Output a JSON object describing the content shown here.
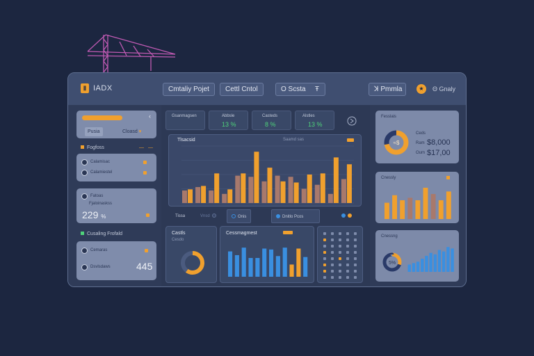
{
  "colors": {
    "accent": "#f0a02e",
    "blue": "#3a8fe0",
    "brown": "#a8796c",
    "green": "#4fd27a",
    "bg": "#1c2640",
    "magenta": "#c05ab3"
  },
  "header": {
    "logo_icon": "logo-icon",
    "logo_text": "IADX",
    "buttons": [
      {
        "label": "Cmtaliy Pojet"
      },
      {
        "label": "Cettl Cntol"
      },
      {
        "icon": "search-icon",
        "label": "O Scsta",
        "caret": "Ŧ"
      },
      {
        "icon": "building-icon",
        "label": "ꓘ Pmmla"
      }
    ],
    "help_icon": "info-icon",
    "help_label": "Θ Gnaly"
  },
  "sidebar": {
    "filter_button": "Pusia",
    "filter_dropdown": "Cloasd",
    "section1": {
      "label": "Fogfoss",
      "dots": "— —"
    },
    "section1_rows": [
      {
        "label": "Calamisac"
      },
      {
        "label": "Calamiestel"
      }
    ],
    "section2_rows": [
      {
        "label": "Fatoas"
      },
      {
        "label": "Fjaloinaskss"
      }
    ],
    "section2_value": "229",
    "section2_unit": "%",
    "section3": {
      "label": "Cusaling Frofald"
    },
    "section3_rows": [
      {
        "label": "Cemaras"
      },
      {
        "label": "Dsvlsdaws"
      }
    ],
    "section3_value": "445"
  },
  "kpis": [
    {
      "label": "Gsanmagsen",
      "value": ""
    },
    {
      "label": "Abbsle",
      "value": "13 %"
    },
    {
      "label": "Casteds",
      "value": "8 %"
    },
    {
      "label": "Alstles",
      "value": "13 %"
    }
  ],
  "main_chart": {
    "title": "Tlsacsid",
    "subtitle": "Saamd sas",
    "chart_data": {
      "type": "bar",
      "series": [
        {
          "values": [
            22,
            28,
            22,
            16,
            48,
            46,
            38,
            48,
            46,
            25,
            32,
            16,
            42
          ]
        },
        {
          "values": [
            24,
            30,
            52,
            24,
            52,
            90,
            62,
            38,
            36,
            50,
            52,
            80,
            68
          ]
        }
      ],
      "ylim": [
        0,
        100
      ]
    }
  },
  "tab_strip": [
    {
      "label": "Tissa"
    },
    {
      "label": "Vnsd"
    },
    {
      "label": "Onis"
    },
    {
      "label": "Dnitlo Pcos"
    },
    {
      "label": ""
    }
  ],
  "cost_panel": {
    "title": "Castls",
    "subtitle": "Cesdo",
    "chart_data": {
      "type": "pie",
      "values": [
        60,
        40
      ]
    }
  },
  "cost_management": {
    "title": "Cessmagmest",
    "chart_data": {
      "type": "bar",
      "values": [
        54,
        46,
        62,
        40,
        40,
        60,
        58,
        44,
        62,
        26,
        60,
        42
      ],
      "highlight_indices": [
        9,
        10
      ],
      "ylim": [
        0,
        80
      ]
    }
  },
  "calendar": {
    "title": "",
    "dots": 40
  },
  "right_cards": {
    "card1": {
      "title": "Fesslais",
      "center_label": "≈$",
      "lines": [
        {
          "label": "Ceds",
          "value": ""
        },
        {
          "label": "Ram",
          "value": "$8,000"
        },
        {
          "label": "Oum",
          "value": "$17,00"
        }
      ],
      "chart_data": {
        "type": "pie",
        "values": [
          72,
          28
        ]
      }
    },
    "card2": {
      "title": "Cnessly",
      "chart_data": {
        "type": "bar",
        "values": [
          26,
          38,
          30,
          34,
          30,
          50,
          40,
          30,
          44
        ],
        "ylim": [
          0,
          60
        ]
      }
    },
    "card3": {
      "title": "Cnessng",
      "center_label": "5%",
      "chart_data": {
        "type": "bar",
        "values": [
          10,
          12,
          14,
          18,
          22,
          26,
          24,
          30,
          28,
          34,
          32
        ],
        "ylim": [
          0,
          40
        ]
      }
    }
  }
}
